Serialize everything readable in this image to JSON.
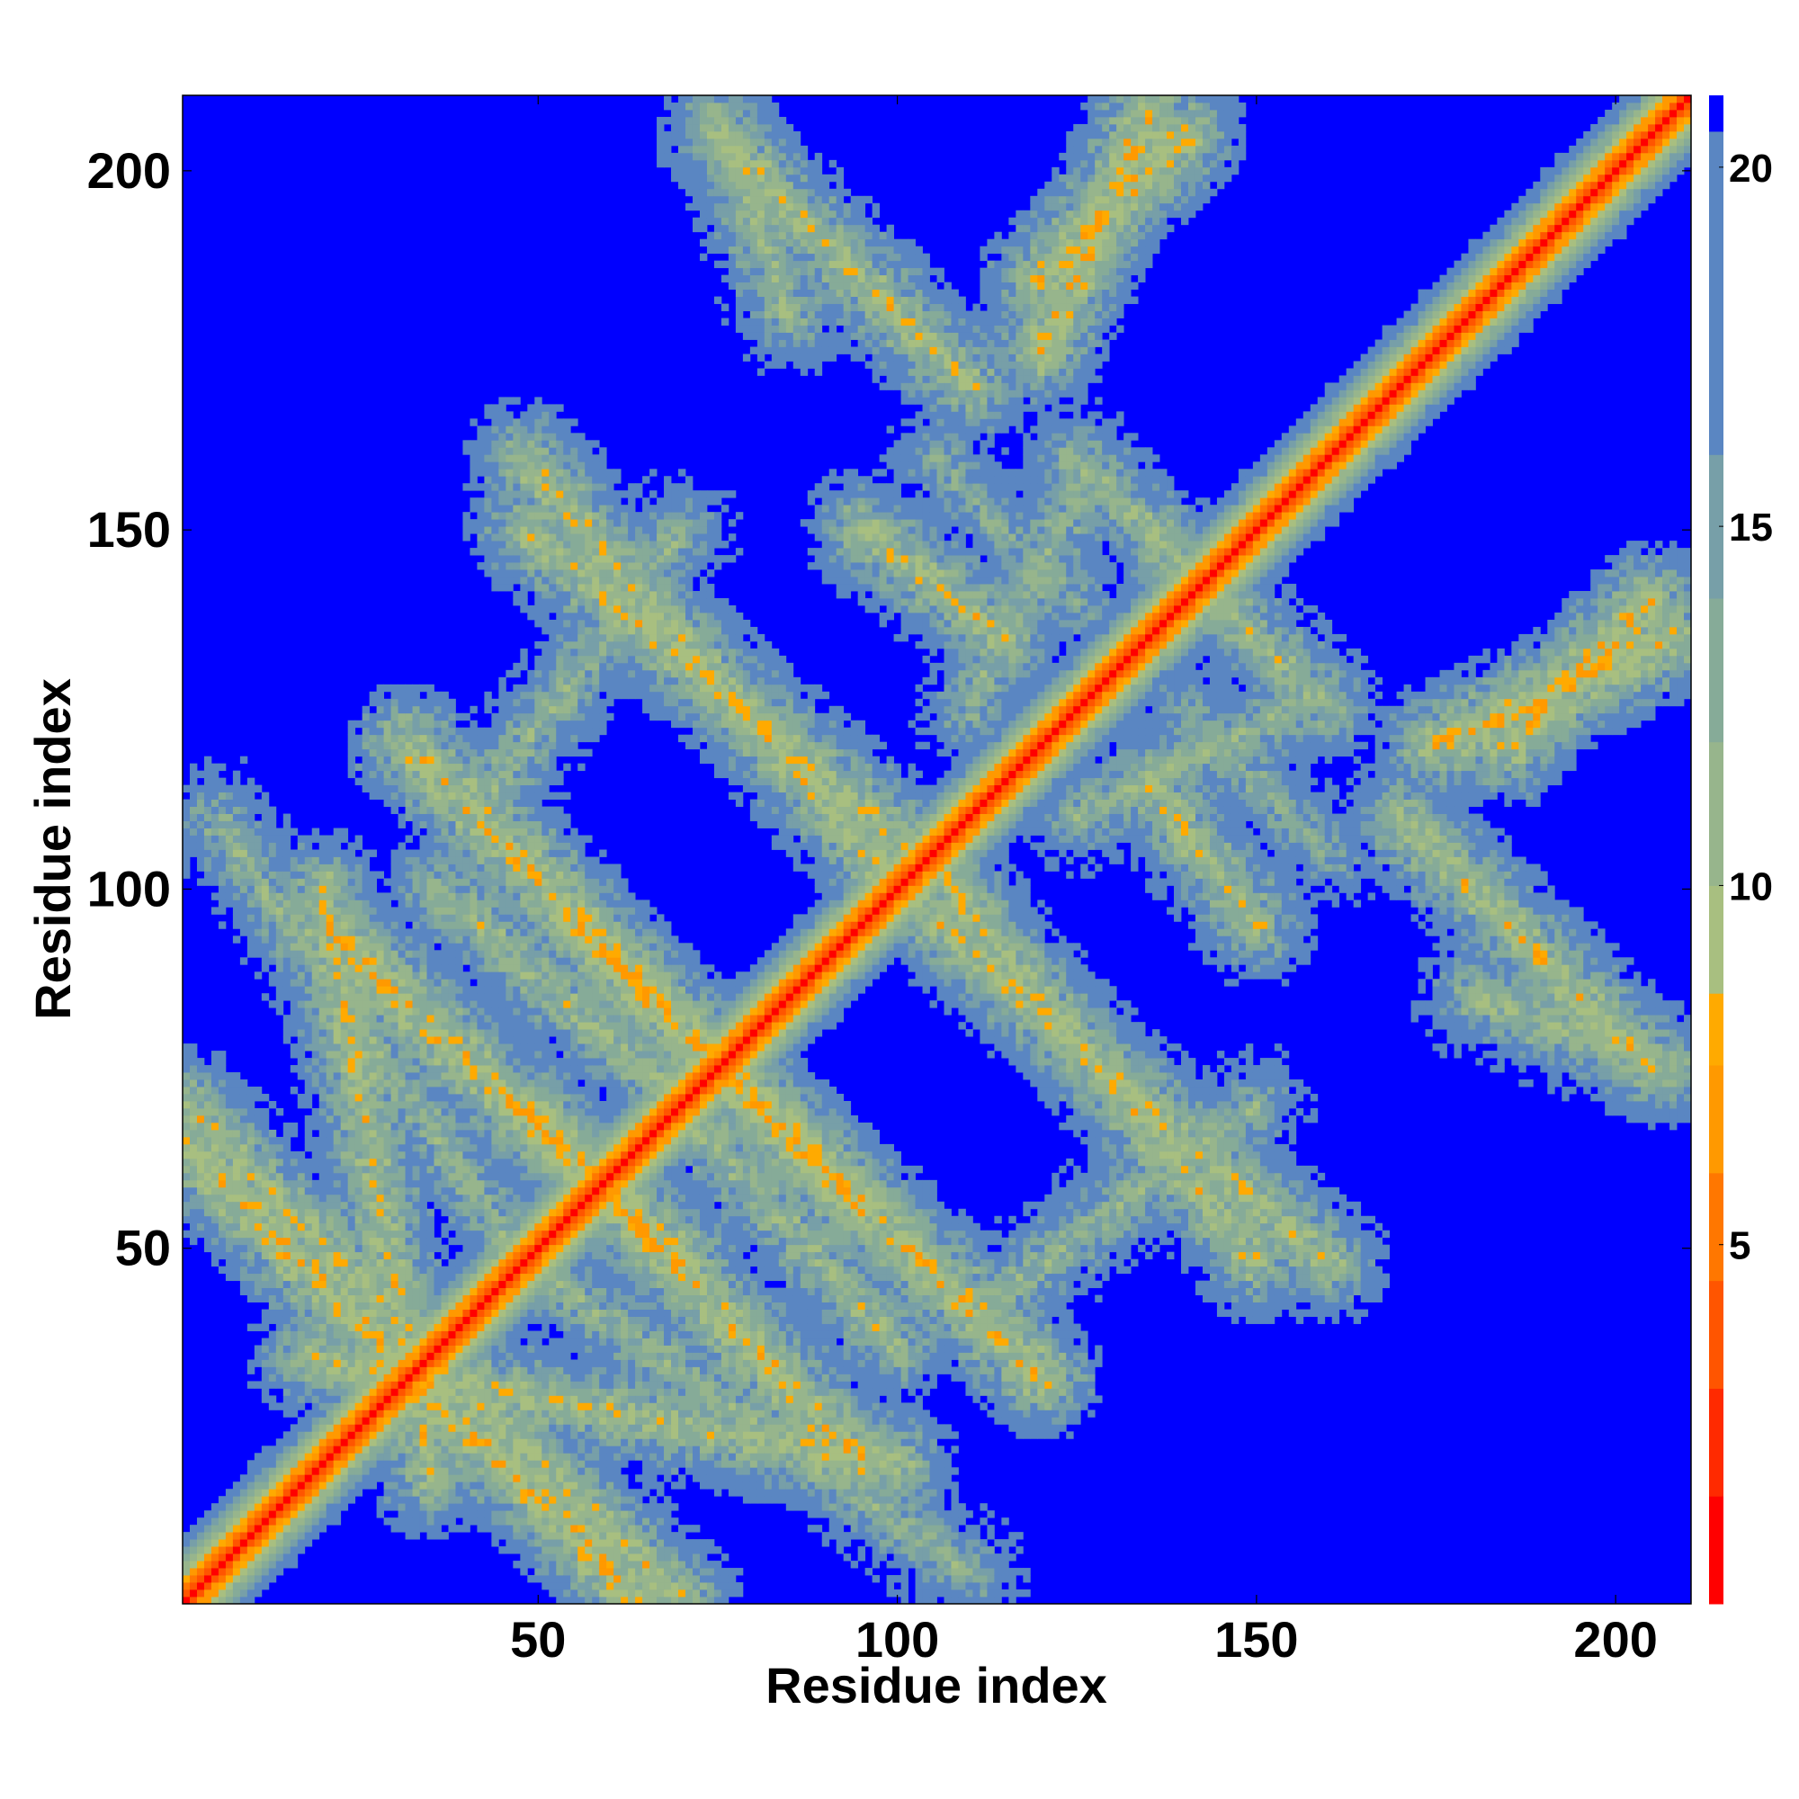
{
  "chart_data": {
    "type": "heatmap",
    "title": "",
    "xlabel": "Residue index",
    "ylabel": "Residue index",
    "xlim": [
      1,
      210
    ],
    "ylim": [
      1,
      210
    ],
    "xticks": [
      50,
      100,
      150,
      200
    ],
    "yticks": [
      50,
      100,
      150,
      200
    ],
    "colorbar": {
      "range": [
        0,
        21
      ],
      "ticks": [
        5,
        10,
        15,
        20
      ],
      "levels": [
        {
          "upto": 1.5,
          "color": "#ff0000"
        },
        {
          "upto": 3,
          "color": "#ff2a00"
        },
        {
          "upto": 4.5,
          "color": "#ff5500"
        },
        {
          "upto": 6,
          "color": "#ff7700"
        },
        {
          "upto": 7.5,
          "color": "#ff9900"
        },
        {
          "upto": 8.5,
          "color": "#ffaa00"
        },
        {
          "upto": 10,
          "color": "#a8bf80"
        },
        {
          "upto": 12,
          "color": "#97b58c"
        },
        {
          "upto": 14,
          "color": "#86ab98"
        },
        {
          "upto": 16,
          "color": "#779fa8"
        },
        {
          "upto": 20.5,
          "color": "#5a86c2"
        },
        {
          "upto": 99,
          "color": "#0000ff"
        }
      ]
    },
    "diagonal": {
      "description": "self distance, near-zero along i = j",
      "values_at_offset": [
        0,
        3.8,
        5.8,
        7.5,
        9.5,
        11.5,
        13.5,
        15.5,
        17.5,
        19.5,
        21
      ]
    },
    "contact_bands": [
      {
        "start": [
          1,
          64
        ],
        "end": [
          32,
          33
        ],
        "distance": 9
      },
      {
        "start": [
          20,
          95
        ],
        "end": [
          70,
          48
        ],
        "distance": 9
      },
      {
        "start": [
          32,
          120
        ],
        "end": [
          95,
          55
        ],
        "distance": 9
      },
      {
        "start": [
          48,
          150
        ],
        "end": [
          103,
          105
        ],
        "distance": 10
      },
      {
        "start": [
          20,
          100
        ],
        "end": [
          35,
          18
        ],
        "distance": 10
      },
      {
        "start": [
          35,
          35
        ],
        "end": [
          70,
          1
        ],
        "distance": 10
      },
      {
        "start": [
          48,
          48
        ],
        "end": [
          110,
          5
        ],
        "distance": 12
      },
      {
        "start": [
          70,
          70
        ],
        "end": [
          100,
          36
        ],
        "distance": 11
      },
      {
        "start": [
          100,
          100
        ],
        "end": [
          160,
          48
        ],
        "distance": 10
      },
      {
        "start": [
          113,
          43
        ],
        "end": [
          150,
          70
        ],
        "distance": 12
      },
      {
        "start": [
          125,
          110
        ],
        "end": [
          155,
          125
        ],
        "distance": 12
      },
      {
        "start": [
          75,
          205
        ],
        "end": [
          110,
          170
        ],
        "distance": 10
      },
      {
        "start": [
          95,
          150
        ],
        "end": [
          115,
          135
        ],
        "distance": 10
      },
      {
        "start": [
          120,
          185
        ],
        "end": [
          140,
          205
        ],
        "distance": 9
      },
      {
        "start": [
          140,
          145
        ],
        "end": [
          160,
          125
        ],
        "distance": 11
      },
      {
        "start": [
          175,
          120
        ],
        "end": [
          208,
          135
        ],
        "distance": 9
      },
      {
        "start": [
          180,
          85
        ],
        "end": [
          208,
          75
        ],
        "distance": 11
      },
      {
        "start": [
          105,
          160
        ],
        "end": [
          125,
          140
        ],
        "distance": 13
      }
    ]
  }
}
